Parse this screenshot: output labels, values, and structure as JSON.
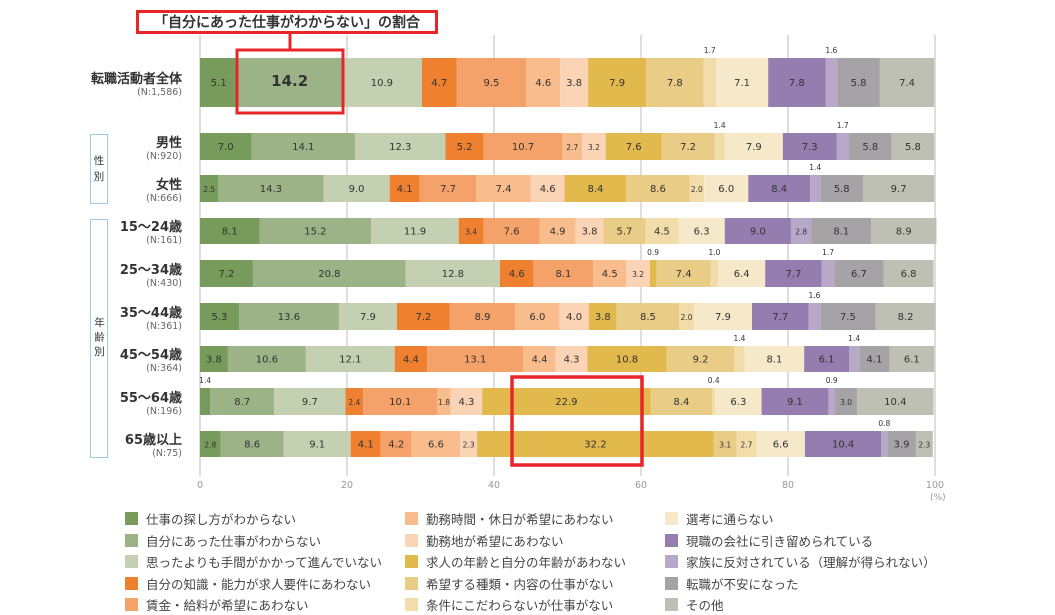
{
  "chart_data": {
    "type": "bar",
    "orientation": "horizontal-stacked-100",
    "title": "「自分にあった仕事がわからない」の割合",
    "xlabel": "",
    "unit": "(%)",
    "xlim": [
      0,
      100
    ],
    "xticks": [
      "0",
      "20",
      "40",
      "60",
      "80",
      "100"
    ],
    "grid": true,
    "legend_placement": "bottom",
    "series": [
      {
        "name": "仕事の探し方がわからない",
        "color": "#779b5a"
      },
      {
        "name": "自分にあった仕事がわからない",
        "color": "#9bb386"
      },
      {
        "name": "思ったよりも手間がかかって進んでいない",
        "color": "#c5cfb2"
      },
      {
        "name": "自分の知識・能力が求人要件にあわない",
        "color": "#ef8030"
      },
      {
        "name": "賃金・給料が希望にあわない",
        "color": "#f5a26a"
      },
      {
        "name": "勤務時間・休日が希望にあわない",
        "color": "#f8bc8d"
      },
      {
        "name": "勤務地が希望にあわない",
        "color": "#fbd3b5"
      },
      {
        "name": "求人の年齢と自分の年齢があわない",
        "color": "#e2b94d"
      },
      {
        "name": "希望する種類・内容の仕事がない",
        "color": "#e9cd86"
      },
      {
        "name": "条件にこだわらないが仕事がない",
        "color": "#f1dcaa"
      },
      {
        "name": "選考に通らない",
        "color": "#f6e9ca"
      },
      {
        "name": "現職の会社に引き留められている",
        "color": "#957db0"
      },
      {
        "name": "家族に反対されている（理解が得られない）",
        "color": "#b9a9c9"
      },
      {
        "name": "転職が不安になった",
        "color": "#a5a3a5"
      },
      {
        "name": "その他",
        "color": "#bec0b4"
      }
    ],
    "categories": [
      {
        "label": "転職活動者全体",
        "n": "(N:1,586)",
        "values": [
          5.1,
          14.2,
          10.9,
          4.7,
          9.5,
          4.6,
          3.8,
          7.9,
          7.8,
          1.7,
          7.1,
          7.8,
          1.6,
          5.8,
          7.4
        ]
      },
      {
        "label": "男性",
        "n": "(N:920)",
        "values": [
          7.0,
          14.1,
          12.3,
          5.2,
          10.7,
          2.7,
          3.2,
          7.6,
          7.2,
          1.4,
          7.9,
          7.3,
          1.7,
          5.8,
          5.8
        ]
      },
      {
        "label": "女性",
        "n": "(N:666)",
        "values": [
          2.5,
          14.3,
          9.0,
          4.1,
          7.7,
          7.4,
          4.6,
          8.4,
          8.6,
          2.0,
          6.0,
          8.4,
          1.4,
          5.8,
          9.7
        ]
      },
      {
        "label": "15〜24歳",
        "n": "(N:161)",
        "values": [
          8.1,
          15.2,
          11.9,
          3.4,
          7.6,
          4.9,
          3.8,
          0,
          5.7,
          4.5,
          6.3,
          9.0,
          2.8,
          8.1,
          8.9
        ]
      },
      {
        "label": "25〜34歳",
        "n": "(N:430)",
        "values": [
          7.2,
          20.8,
          12.8,
          4.6,
          8.1,
          4.5,
          3.2,
          0.9,
          7.4,
          1.0,
          6.4,
          7.7,
          1.7,
          6.7,
          6.8
        ]
      },
      {
        "label": "35〜44歳",
        "n": "(N:361)",
        "values": [
          5.3,
          13.6,
          7.9,
          7.2,
          8.9,
          6.0,
          4.0,
          3.8,
          8.5,
          2.0,
          7.9,
          7.7,
          1.6,
          7.5,
          8.2
        ]
      },
      {
        "label": "45〜54歳",
        "n": "(N:364)",
        "values": [
          3.8,
          10.6,
          12.1,
          4.4,
          13.1,
          4.4,
          4.3,
          10.8,
          9.2,
          1.4,
          8.1,
          6.1,
          1.4,
          4.1,
          6.1
        ]
      },
      {
        "label": "55〜64歳",
        "n": "(N:196)",
        "values": [
          1.4,
          8.7,
          9.7,
          2.4,
          10.1,
          1.8,
          4.3,
          22.9,
          8.4,
          0.4,
          6.3,
          9.1,
          0.9,
          3.0,
          10.4
        ]
      },
      {
        "label": "65歳以上",
        "n": "(N:75)",
        "values": [
          2.8,
          8.6,
          9.1,
          4.1,
          4.2,
          6.6,
          2.3,
          32.2,
          3.1,
          2.7,
          6.6,
          10.4,
          0.8,
          3.9,
          2.3
        ]
      }
    ],
    "groups": [
      {
        "label": "性別",
        "chars": [
          "性",
          "別"
        ]
      },
      {
        "label": "年齢別",
        "chars": [
          "年",
          "齢",
          "別"
        ]
      }
    ],
    "highlight_color": "#e8262a"
  }
}
